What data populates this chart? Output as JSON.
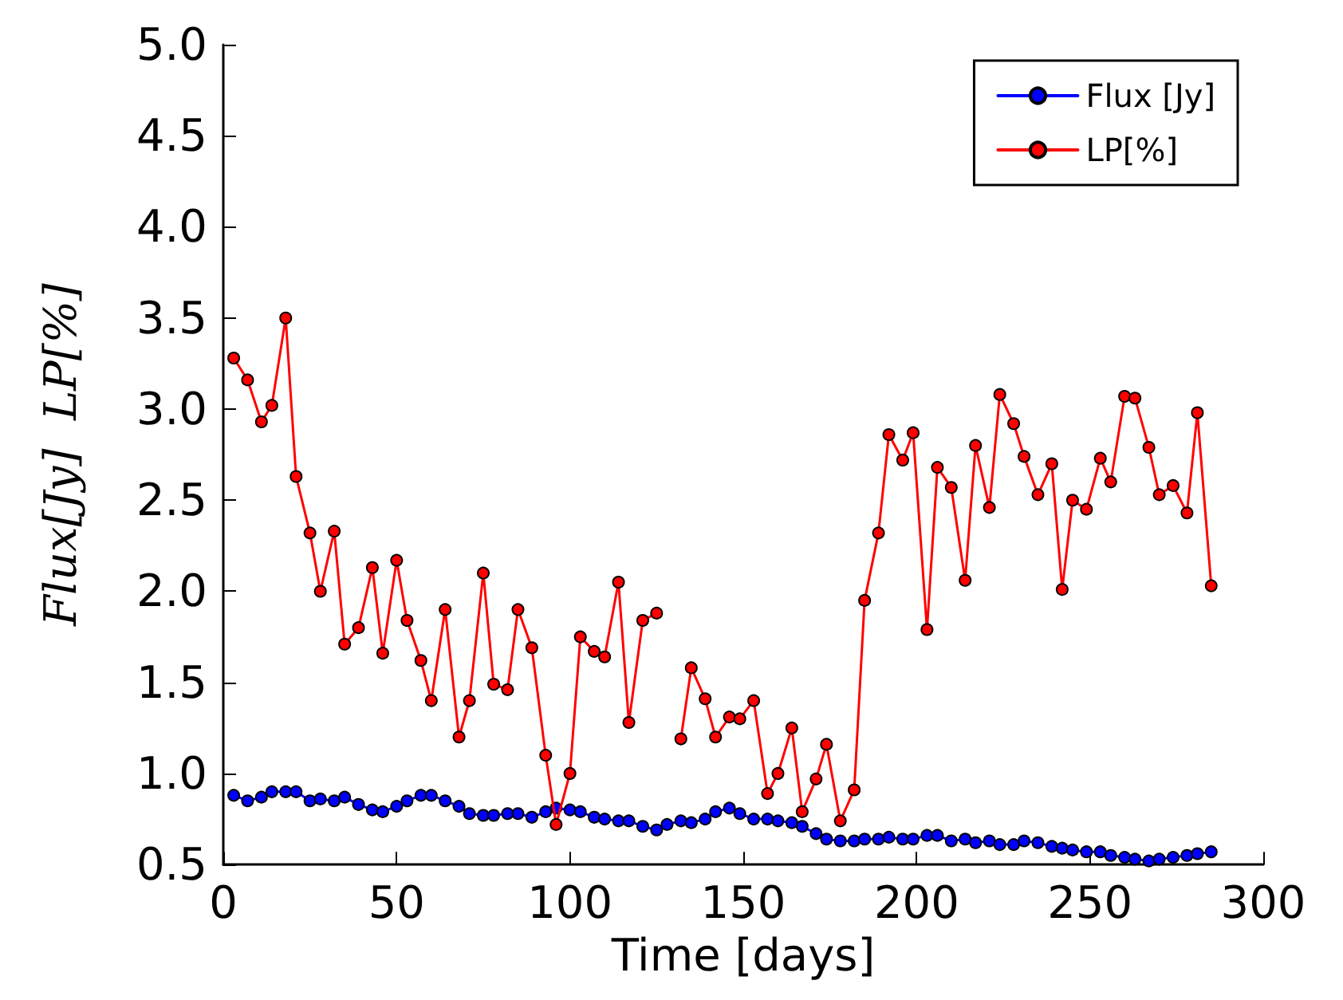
{
  "chart_data": {
    "type": "line",
    "xlabel": "Time [days]",
    "ylabel": "Flux[Jy]  LP[%]",
    "xlim": [
      0,
      300
    ],
    "xticks": [
      0,
      50,
      100,
      150,
      200,
      250,
      300
    ],
    "ylim": [
      0.5,
      5.0
    ],
    "yticks": [
      {
        "value": 0.5,
        "label": "0.5"
      },
      {
        "value": 1.0,
        "label": "1.0"
      },
      {
        "value": 1.5,
        "label": "1.5"
      },
      {
        "value": 2.0,
        "label": "2.0"
      },
      {
        "value": 2.5,
        "label": "2.5"
      },
      {
        "value": 3.0,
        "label": "3.0"
      },
      {
        "value": 3.5,
        "label": "3.5"
      },
      {
        "value": 4.0,
        "label": "4.0"
      },
      {
        "value": 4.5,
        "label": "4.5"
      },
      {
        "value": 5.0,
        "label": "5.0"
      }
    ],
    "x": [
      3,
      7,
      11,
      14,
      18,
      21,
      25,
      28,
      32,
      35,
      39,
      43,
      46,
      50,
      53,
      57,
      60,
      64,
      68,
      71,
      75,
      78,
      82,
      85,
      89,
      93,
      96,
      100,
      103,
      107,
      110,
      114,
      117,
      121,
      125,
      128,
      132,
      135,
      139,
      142,
      146,
      149,
      153,
      157,
      160,
      164,
      167,
      171,
      174,
      178,
      182,
      185,
      189,
      192,
      196,
      199,
      203,
      206,
      210,
      214,
      217,
      221,
      224,
      228,
      231,
      235,
      239,
      242,
      245,
      249,
      253,
      256,
      260,
      263,
      267,
      270,
      274,
      278,
      281,
      285
    ],
    "series": [
      {
        "name": "Flux [Jy]",
        "color": "#0000ff",
        "values": [
          0.88,
          0.85,
          0.87,
          0.9,
          0.9,
          0.9,
          0.85,
          0.86,
          0.85,
          0.87,
          0.83,
          0.8,
          0.79,
          0.82,
          0.85,
          0.88,
          0.88,
          0.85,
          0.82,
          0.78,
          0.77,
          0.77,
          0.78,
          0.78,
          0.76,
          0.79,
          0.81,
          0.8,
          0.79,
          0.76,
          0.75,
          0.74,
          0.74,
          0.71,
          0.69,
          0.72,
          0.74,
          0.73,
          0.75,
          0.79,
          0.81,
          0.78,
          0.75,
          0.75,
          0.74,
          0.73,
          0.71,
          0.67,
          0.64,
          0.63,
          0.63,
          0.64,
          0.64,
          0.65,
          0.64,
          0.64,
          0.66,
          0.66,
          0.63,
          0.64,
          0.62,
          0.63,
          0.61,
          0.61,
          0.63,
          0.62,
          0.6,
          0.59,
          0.58,
          0.57,
          0.57,
          0.55,
          0.54,
          0.53,
          0.52,
          0.53,
          0.54,
          0.55,
          0.56,
          0.57
        ]
      },
      {
        "name": "LP[%]",
        "color": "#ff0000",
        "values": [
          3.28,
          3.16,
          2.93,
          3.02,
          3.5,
          2.63,
          2.32,
          2.0,
          2.33,
          1.71,
          1.8,
          2.13,
          1.66,
          2.17,
          1.84,
          1.62,
          1.4,
          1.9,
          1.2,
          1.4,
          2.1,
          1.49,
          1.46,
          1.9,
          1.69,
          1.1,
          0.72,
          1.0,
          1.75,
          1.67,
          1.64,
          2.05,
          1.28,
          1.84,
          1.88,
          null,
          1.19,
          1.58,
          1.41,
          1.2,
          1.31,
          1.3,
          1.4,
          0.89,
          1.0,
          1.25,
          0.79,
          0.97,
          1.16,
          0.74,
          0.91,
          1.95,
          2.32,
          2.86,
          2.72,
          2.87,
          1.79,
          2.68,
          2.57,
          2.06,
          2.8,
          2.46,
          3.08,
          2.92,
          2.74,
          2.53,
          2.7,
          2.01,
          2.5,
          2.45,
          2.73,
          2.6,
          3.07,
          3.06,
          2.79,
          2.53,
          2.58,
          2.43,
          2.98,
          2.03
        ]
      }
    ],
    "legend": "top right",
    "marker": "circle",
    "line_style": "solid",
    "grid": false
  }
}
